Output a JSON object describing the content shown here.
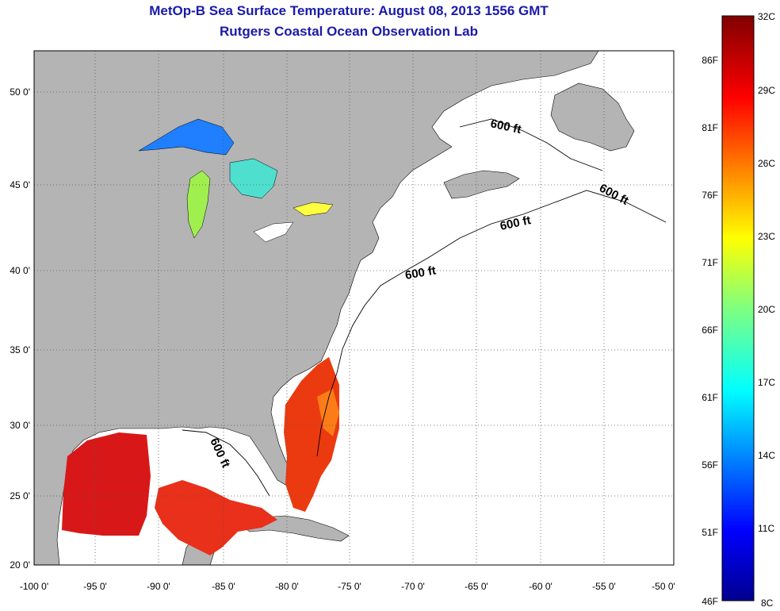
{
  "title": "MetOp-B Sea Surface Temperature:  August 08, 2013 1556 GMT",
  "subtitle": "Rutgers Coastal Ocean Observation Lab",
  "x_ticks": [
    "-100 0'",
    "-95 0'",
    "-90 0'",
    "-85 0'",
    "-80 0'",
    "-75 0'",
    "-70 0'",
    "-65 0'",
    "-60 0'",
    "-55 0'",
    "-50 0'"
  ],
  "y_ticks": [
    "50 0'",
    "45 0'",
    "40 0'",
    "35 0'",
    "30 0'",
    "25 0'",
    "20 0'"
  ],
  "colorbar": {
    "celsius": [
      "32C",
      "29C",
      "26C",
      "23C",
      "20C",
      "17C",
      "14C",
      "11C",
      "8C"
    ],
    "fahrenheit": [
      "86F",
      "81F",
      "76F",
      "71F",
      "66F",
      "61F",
      "56F",
      "51F",
      "46F"
    ]
  },
  "isobath_labels": [
    "600 ft",
    "600 ft",
    "600 ft",
    "600 ft",
    "600 ft"
  ],
  "colors": {
    "title": "#1a1aa8",
    "land": "#b4b4b4",
    "ocean": "#ffffff",
    "grid": "#555555"
  }
}
